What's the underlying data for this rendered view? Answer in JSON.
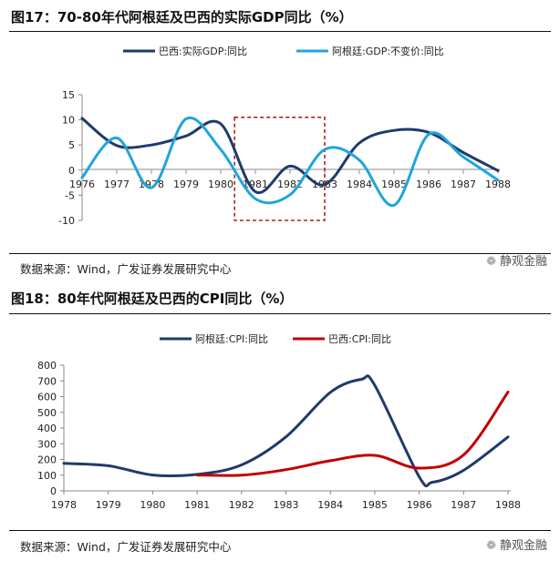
{
  "figure1": {
    "title": "图17：70-80年代阿根廷及巴西的实际GDP同比（%）",
    "source": "数据来源：Wind，广发证券发展研究中心",
    "watermark": "静观金融"
  },
  "figure2": {
    "title": "图18：80年代阿根廷及巴西的CPI同比（%）",
    "source": "数据来源：Wind，广发证券发展研究中心",
    "watermark": "静观金融"
  },
  "colors": {
    "navy": "#1f3a6b",
    "lightblue": "#1ea5dc",
    "red": "#c00000",
    "box": "#b22222"
  },
  "chart_data": [
    {
      "type": "line",
      "title": "70-80年代阿根廷及巴西的实际GDP同比（%）",
      "x": [
        1976,
        1977,
        1978,
        1979,
        1980,
        1981,
        1982,
        1983,
        1984,
        1985,
        1986,
        1987,
        1988
      ],
      "xticks": [
        "1976",
        "1977",
        "1978",
        "1979",
        "1980",
        "1981",
        "1982",
        "1983",
        "1984",
        "1985",
        "1986",
        "1987",
        "1988"
      ],
      "yticks": [
        "15",
        "10",
        "5",
        "0",
        "-5",
        "-10"
      ],
      "ylim": [
        -10,
        15
      ],
      "highlight_box": [
        1980.4,
        1983.0,
        -10,
        10.5
      ],
      "series": [
        {
          "name": "巴西:实际GDP:同比",
          "color": "#1f3a6b",
          "values": [
            10.3,
            4.9,
            5.0,
            6.8,
            9.2,
            -4.3,
            0.8,
            -2.9,
            5.4,
            7.9,
            7.5,
            3.5,
            -0.1
          ]
        },
        {
          "name": "阿根廷:GDP:不变价:同比",
          "color": "#1ea5dc",
          "values": [
            -1.5,
            6.4,
            -3.5,
            10.2,
            4.1,
            -5.7,
            -4.9,
            4.1,
            2.0,
            -7.0,
            7.1,
            2.6,
            -2.0
          ]
        }
      ]
    },
    {
      "type": "line",
      "title": "80年代阿根廷及巴西的CPI同比（%）",
      "x": [
        1978,
        1979,
        1980,
        1981,
        1982,
        1983,
        1984,
        1985,
        1986,
        1987,
        1988
      ],
      "xticks": [
        "1978",
        "1979",
        "1980",
        "1981",
        "1982",
        "1983",
        "1984",
        "1985",
        "1986",
        "1987",
        "1988"
      ],
      "yticks": [
        "800",
        "700",
        "600",
        "500",
        "400",
        "300",
        "200",
        "100",
        "0"
      ],
      "ylim": [
        0,
        800
      ],
      "series": [
        {
          "name": "阿根廷:CPI:同比",
          "color": "#1f3a6b",
          "x": [
            1978,
            1979,
            1980,
            1981,
            1982,
            1983,
            1984,
            1984.7,
            1985,
            1986,
            1986.3,
            1987,
            1988
          ],
          "values": [
            175,
            160,
            101,
            105,
            165,
            344,
            627,
            710,
            672,
            90,
            55,
            131,
            343
          ]
        },
        {
          "name": "巴西:CPI:同比",
          "color": "#c00000",
          "x": [
            1981,
            1982,
            1983,
            1984,
            1985,
            1986,
            1987,
            1988
          ],
          "values": [
            101,
            100,
            135,
            192,
            226,
            145,
            229,
            629
          ]
        }
      ]
    }
  ]
}
